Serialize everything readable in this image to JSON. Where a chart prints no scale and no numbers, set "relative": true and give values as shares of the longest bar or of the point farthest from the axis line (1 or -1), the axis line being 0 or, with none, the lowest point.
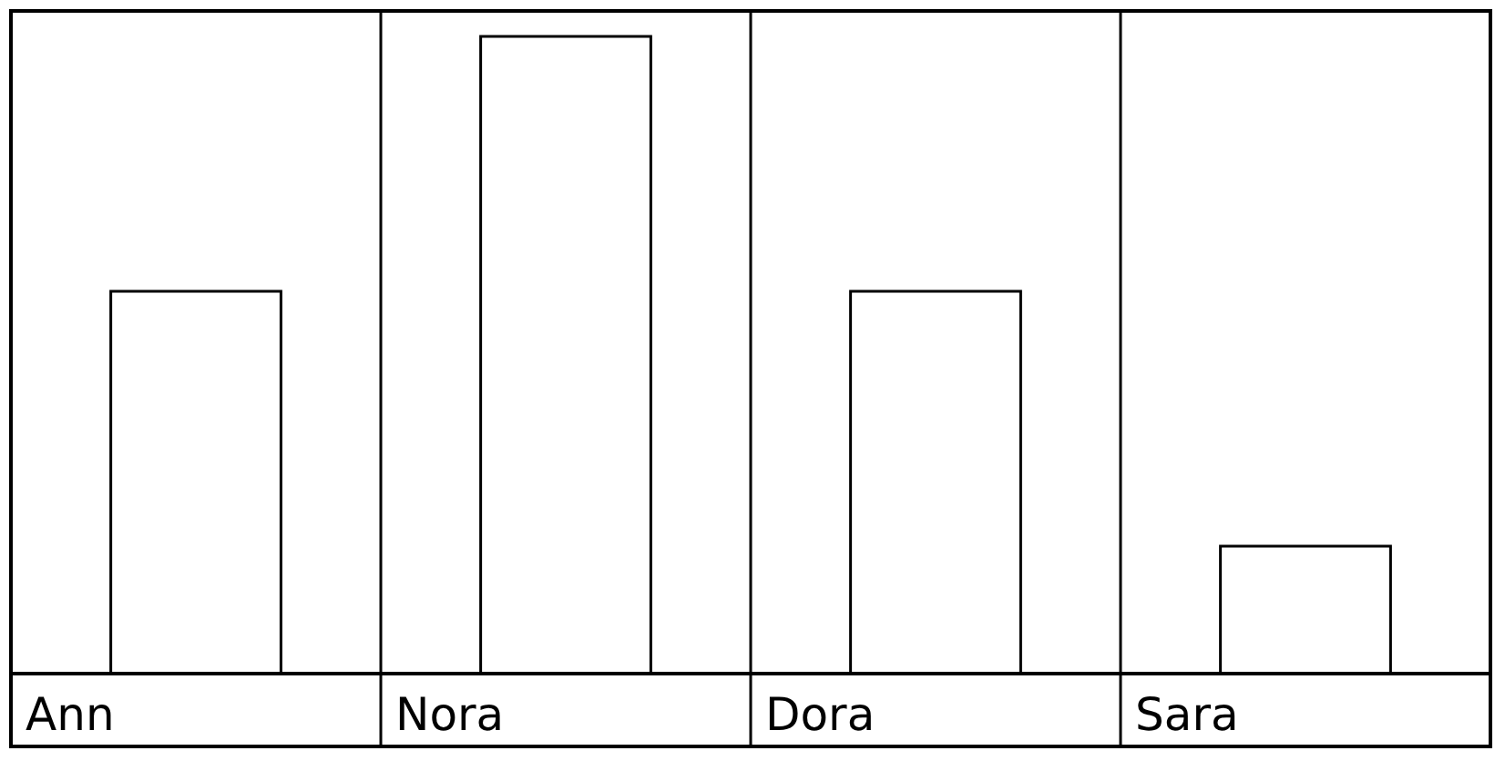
{
  "chart_data": {
    "type": "bar",
    "relative": true,
    "categories": [
      "Ann",
      "Nora",
      "Dora",
      "Sara"
    ],
    "values": [
      0.6,
      1,
      0.6,
      0.2
    ],
    "color": "#ffffff"
  }
}
